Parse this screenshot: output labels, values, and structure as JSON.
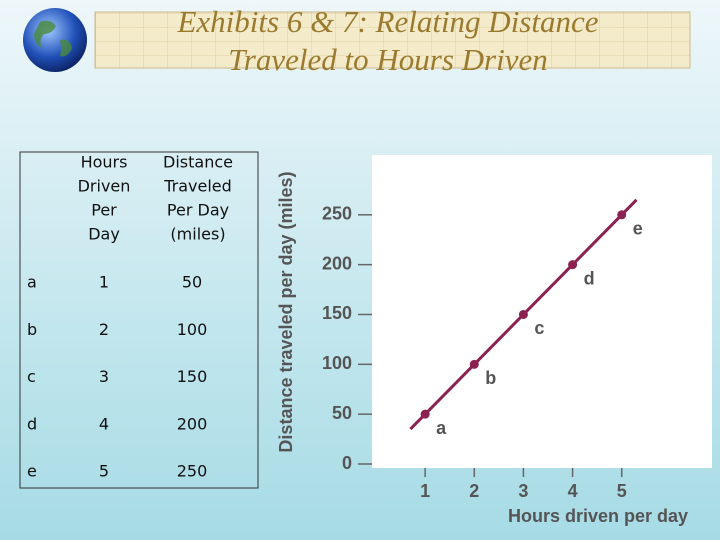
{
  "title": [
    "Exhibits 6 & 7: Relating Distance",
    "Traveled to Hours Driven"
  ],
  "table": {
    "headers": [
      [
        "Hours",
        "Driven",
        "Per",
        "Day"
      ],
      [
        "Distance",
        "Traveled",
        "Per Day",
        "(miles)"
      ]
    ]
  },
  "chart_data": {
    "type": "line",
    "categories": [
      "a",
      "b",
      "c",
      "d",
      "e"
    ],
    "x": [
      1,
      2,
      3,
      4,
      5
    ],
    "values": [
      50,
      100,
      150,
      200,
      250
    ],
    "color": "#8b2252",
    "xlim": [
      0,
      7
    ],
    "ylim": [
      0,
      310
    ],
    "xticks": [
      1,
      2,
      3,
      4,
      5
    ],
    "yticks": [
      0,
      50,
      100,
      150,
      200,
      250
    ],
    "xlabel": "Hours driven per day",
    "ylabel": "Distance traveled per day (miles)"
  }
}
